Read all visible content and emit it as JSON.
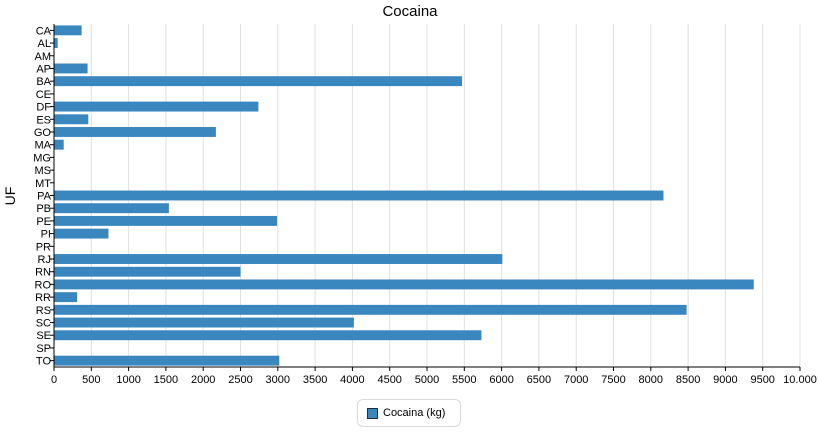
{
  "chart_data": {
    "type": "bar",
    "orientation": "horizontal",
    "title": "Cocaina",
    "ylabel": "UF",
    "xlabel": "",
    "xlim": [
      0,
      10000
    ],
    "x_ticks": [
      "0",
      "500",
      "1000",
      "1500",
      "2000",
      "2500",
      "3000",
      "3500",
      "4000",
      "4500",
      "5000",
      "5500",
      "6000",
      "6500",
      "7000",
      "7500",
      "8000",
      "8500",
      "9000",
      "9500",
      "10.000"
    ],
    "grid": "vertical",
    "legend_position": "bottom-center",
    "categories": [
      "CA",
      "AL",
      "AM",
      "AP",
      "BA",
      "CE",
      "DF",
      "ES",
      "GO",
      "MA",
      "MG",
      "MS",
      "MT",
      "PA",
      "PB",
      "PE",
      "PI",
      "PR",
      "RJ",
      "RN",
      "RO",
      "RR",
      "RS",
      "SC",
      "SE",
      "SP",
      "TO"
    ],
    "series": [
      {
        "name": "Cocaina (kg)",
        "color": "#3a86bf",
        "values": [
          370,
          50,
          0,
          450,
          5470,
          0,
          2740,
          460,
          2170,
          130,
          0,
          0,
          0,
          8170,
          1540,
          2990,
          730,
          0,
          6010,
          2500,
          9380,
          310,
          8480,
          4020,
          5730,
          0,
          3020
        ]
      }
    ]
  }
}
